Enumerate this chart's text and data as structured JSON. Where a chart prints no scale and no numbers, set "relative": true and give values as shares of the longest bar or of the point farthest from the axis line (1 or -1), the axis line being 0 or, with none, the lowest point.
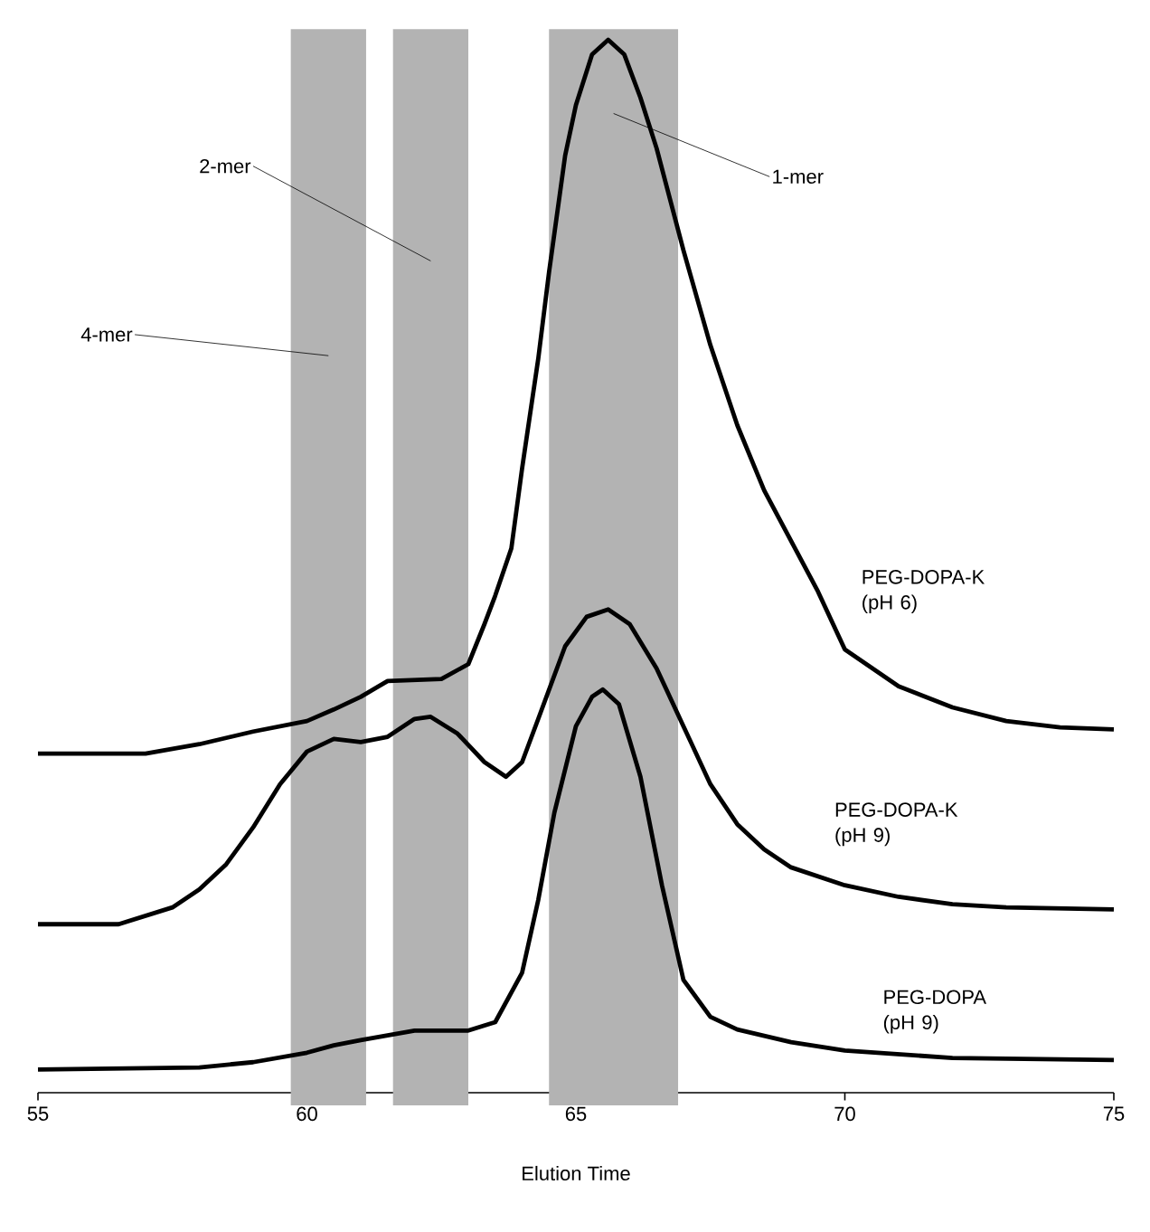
{
  "chart_data": {
    "type": "line",
    "relative": true,
    "xlabel": "Elution Time",
    "xlim": [
      55,
      75
    ],
    "xticks": [
      55,
      60,
      65,
      70,
      75
    ],
    "grid": false,
    "marker": "none",
    "line_style": "solid",
    "bands": [
      {
        "axis": "x",
        "from": 59.7,
        "to": 61.1,
        "label": "4-mer",
        "color": "#b3b3b3"
      },
      {
        "axis": "x",
        "from": 61.6,
        "to": 63.0,
        "label": "2-mer",
        "color": "#b3b3b3"
      },
      {
        "axis": "x",
        "from": 64.5,
        "to": 66.9,
        "label": "1-mer",
        "color": "#b3b3b3"
      }
    ],
    "series": [
      {
        "name": "PEG-DOPA-K (pH 6)",
        "color": "#000000",
        "x": [
          55,
          57,
          58,
          59,
          60,
          60.5,
          61,
          61.5,
          62.5,
          63,
          63.3,
          63.5,
          63.8,
          64,
          64.3,
          64.5,
          64.8,
          65,
          65.3,
          65.6,
          65.9,
          66.2,
          66.5,
          67,
          67.5,
          68,
          68.5,
          69,
          69.5,
          70,
          71,
          72,
          73,
          74,
          75
        ],
        "values": [
          0.322,
          0.322,
          0.331,
          0.343,
          0.353,
          0.364,
          0.376,
          0.391,
          0.393,
          0.407,
          0.445,
          0.472,
          0.517,
          0.593,
          0.697,
          0.779,
          0.89,
          0.938,
          0.986,
          1.0,
          0.986,
          0.945,
          0.897,
          0.8,
          0.71,
          0.634,
          0.572,
          0.524,
          0.476,
          0.421,
          0.386,
          0.366,
          0.353,
          0.347,
          0.345
        ]
      },
      {
        "name": "PEG-DOPA-K (pH 9)",
        "color": "#000000",
        "x": [
          55,
          56.5,
          57.5,
          58,
          58.5,
          59,
          59.5,
          60,
          60.5,
          61,
          61.5,
          62,
          62.3,
          62.8,
          63.3,
          63.7,
          64,
          64.3,
          64.8,
          65.2,
          65.6,
          66,
          66.5,
          67,
          67.5,
          68,
          68.5,
          69,
          70,
          71,
          72,
          73,
          75
        ],
        "values": [
          0.16,
          0.16,
          0.176,
          0.193,
          0.217,
          0.252,
          0.293,
          0.324,
          0.336,
          0.333,
          0.338,
          0.355,
          0.357,
          0.341,
          0.314,
          0.3,
          0.314,
          0.355,
          0.424,
          0.452,
          0.459,
          0.445,
          0.403,
          0.348,
          0.293,
          0.255,
          0.231,
          0.214,
          0.197,
          0.186,
          0.179,
          0.176,
          0.174
        ]
      },
      {
        "name": "PEG-DOPA (pH 9)",
        "color": "#000000",
        "x": [
          55,
          58,
          59,
          60,
          60.5,
          61,
          62,
          63,
          63.5,
          64,
          64.3,
          64.6,
          65,
          65.3,
          65.5,
          65.8,
          66.2,
          66.6,
          67,
          67.5,
          68,
          69,
          70,
          72,
          75
        ],
        "values": [
          0.022,
          0.024,
          0.029,
          0.038,
          0.045,
          0.05,
          0.059,
          0.059,
          0.067,
          0.114,
          0.183,
          0.266,
          0.348,
          0.376,
          0.383,
          0.369,
          0.3,
          0.197,
          0.107,
          0.072,
          0.06,
          0.048,
          0.04,
          0.033,
          0.031
        ]
      }
    ]
  }
}
